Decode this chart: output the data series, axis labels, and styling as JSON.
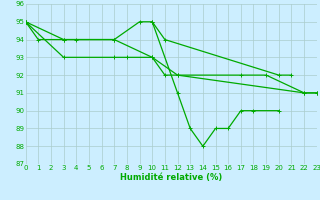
{
  "xlabel": "Humidité relative (%)",
  "bg_color": "#cceeff",
  "grid_color": "#aacccc",
  "line_color": "#00aa00",
  "xmin": 0,
  "xmax": 23,
  "ymin": 87,
  "ymax": 96,
  "yticks": [
    87,
    88,
    89,
    90,
    91,
    92,
    93,
    94,
    95,
    96
  ],
  "xticks": [
    0,
    1,
    2,
    3,
    4,
    5,
    6,
    7,
    8,
    9,
    10,
    11,
    12,
    13,
    14,
    15,
    16,
    17,
    18,
    19,
    20,
    21,
    22,
    23
  ],
  "series_x": [
    [
      0,
      1,
      3,
      4,
      7,
      9,
      10,
      11,
      20,
      21
    ],
    [
      0,
      3,
      7,
      8,
      10,
      12,
      17,
      19,
      22,
      23
    ],
    [
      0,
      3,
      7,
      10,
      11,
      12,
      22,
      23
    ],
    [
      10,
      12,
      13,
      14,
      15,
      16,
      17,
      18,
      20
    ]
  ],
  "series_y": [
    [
      95,
      94,
      94,
      94,
      94,
      95,
      95,
      94,
      92,
      92
    ],
    [
      95,
      93,
      93,
      93,
      93,
      92,
      92,
      92,
      91,
      91
    ],
    [
      95,
      94,
      94,
      93,
      92,
      92,
      91,
      91
    ],
    [
      95,
      91,
      89,
      88,
      89,
      89,
      90,
      90,
      90
    ]
  ]
}
